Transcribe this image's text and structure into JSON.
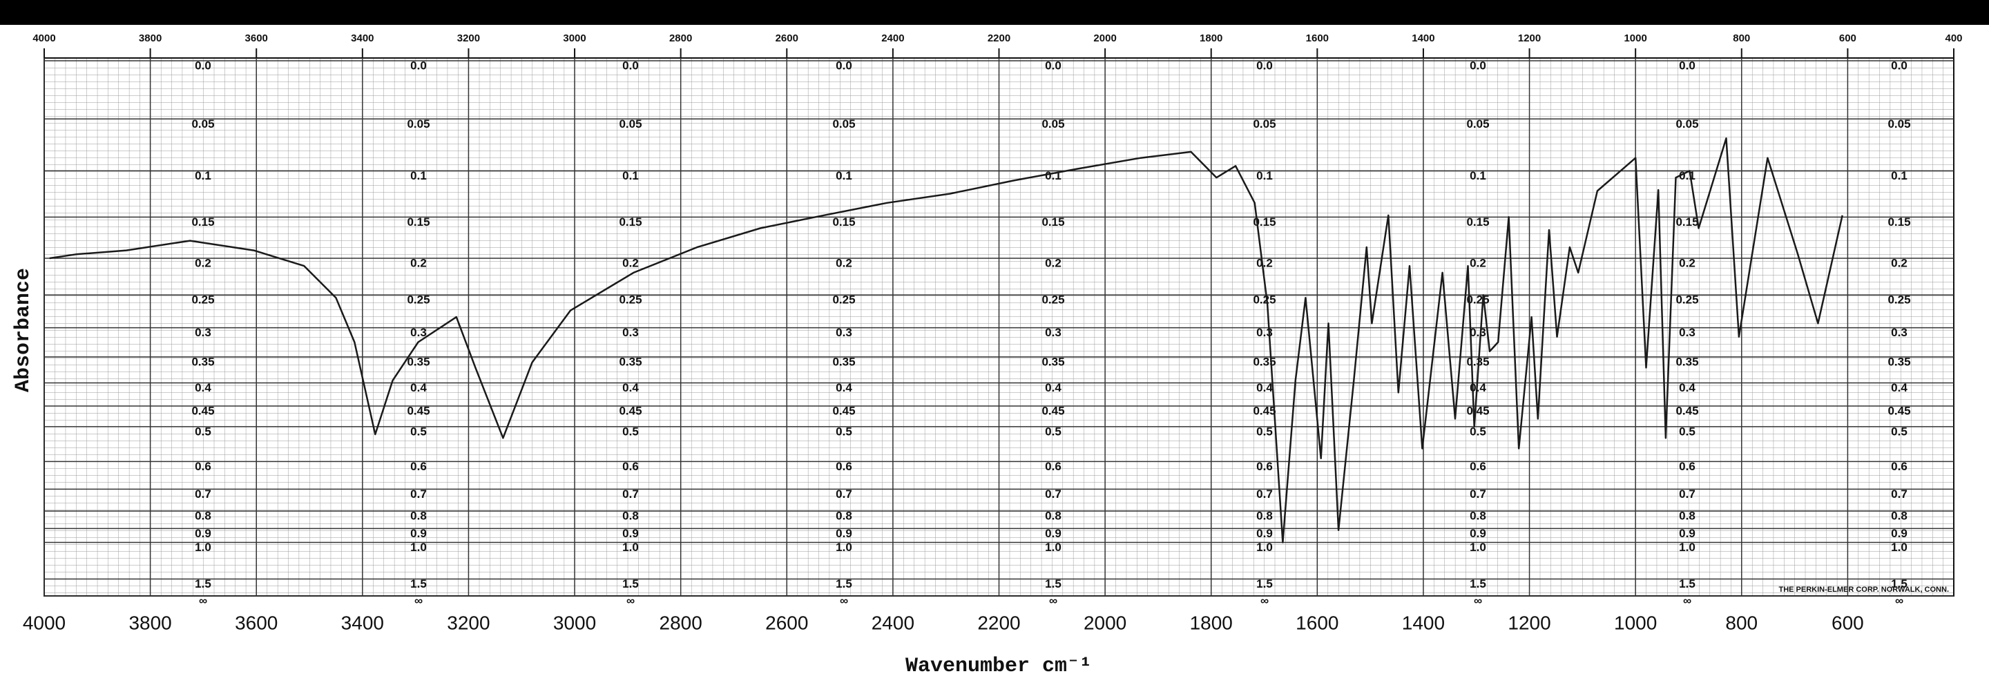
{
  "chart_data": {
    "type": "line",
    "xlabel": "Wavenumber cm⁻¹",
    "ylabel": "Absorbance",
    "annotation": "THE PERKIN-ELMER CORP. NORWALK, CONN.",
    "color": "#1a1a1a",
    "grid": true,
    "yscale": "absorbance",
    "xlim": [
      4000,
      400
    ],
    "xticks": [
      4000,
      3800,
      3600,
      3400,
      3200,
      3000,
      2800,
      2600,
      2400,
      2200,
      2000,
      1800,
      1600,
      1400,
      1200,
      1000,
      800,
      600
    ],
    "x2ticks": [
      4000,
      3800,
      3600,
      3400,
      3200,
      3000,
      2800,
      2600,
      2400,
      2200,
      2000,
      1800,
      1600,
      1400,
      1200,
      1000,
      800,
      600,
      400
    ],
    "ylim": [
      0,
      null
    ],
    "yticks": [
      {
        "value": 0,
        "label": "0.0"
      },
      0.05,
      0.1,
      0.15,
      0.2,
      0.25,
      0.3,
      0.35,
      0.4,
      0.45,
      0.5,
      0.6,
      0.7,
      0.8,
      0.9,
      {
        "value": 1,
        "label": "1.0"
      },
      1.5,
      {
        "value": null,
        "label": "∞"
      }
    ],
    "x": [
      3990,
      3940,
      3845,
      3725,
      3605,
      3510,
      3450,
      3415,
      3376,
      3343,
      3295,
      3223,
      3187,
      3135,
      3080,
      3008,
      2889,
      2769,
      2650,
      2530,
      2411,
      2292,
      2172,
      2053,
      1933,
      1838,
      1790,
      1754,
      1718,
      1694,
      1665,
      1641,
      1622,
      1593,
      1579,
      1560,
      1531,
      1507,
      1497,
      1466,
      1447,
      1426,
      1402,
      1364,
      1340,
      1316,
      1304,
      1287,
      1275,
      1259,
      1239,
      1220,
      1196,
      1184,
      1163,
      1148,
      1124,
      1108,
      1072,
      1000,
      980,
      957,
      943,
      924,
      898,
      881,
      829,
      805,
      751,
      694,
      656,
      610
    ],
    "values": [
      0.2,
      0.195,
      0.19,
      0.178,
      0.19,
      0.21,
      0.254,
      0.324,
      0.52,
      0.395,
      0.324,
      0.283,
      0.37,
      0.53,
      0.36,
      0.273,
      0.219,
      0.186,
      0.163,
      0.148,
      0.134,
      0.124,
      0.11,
      0.098,
      0.087,
      0.081,
      0.107,
      0.095,
      0.134,
      0.263,
      1.0,
      0.395,
      0.254,
      0.59,
      0.293,
      0.91,
      0.395,
      0.186,
      0.293,
      0.148,
      0.42,
      0.21,
      0.56,
      0.219,
      0.48,
      0.21,
      0.5,
      0.25,
      0.34,
      0.324,
      0.15,
      0.56,
      0.283,
      0.48,
      0.165,
      0.315,
      0.186,
      0.219,
      0.121,
      0.087,
      0.37,
      0.12,
      0.53,
      0.107,
      0.1,
      0.163,
      0.068,
      0.315,
      0.087,
      0.195,
      0.293,
      0.148
    ]
  }
}
